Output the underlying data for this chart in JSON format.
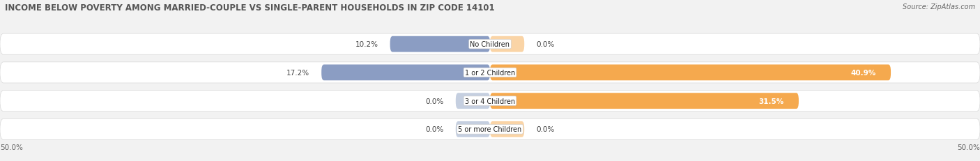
{
  "title": "INCOME BELOW POVERTY AMONG MARRIED-COUPLE VS SINGLE-PARENT HOUSEHOLDS IN ZIP CODE 14101",
  "source": "Source: ZipAtlas.com",
  "categories": [
    "No Children",
    "1 or 2 Children",
    "3 or 4 Children",
    "5 or more Children"
  ],
  "married_values": [
    10.2,
    17.2,
    0.0,
    0.0
  ],
  "single_values": [
    0.0,
    40.9,
    31.5,
    0.0
  ],
  "married_color": "#8b9dc3",
  "single_color": "#f5a94e",
  "married_color_light": "#c5cfe0",
  "single_color_light": "#fad4a6",
  "axis_max": 50.0,
  "bg_color": "#f2f2f2",
  "bar_bg_color": "#ffffff",
  "bar_bg_edge": "#d8d8d8",
  "title_fontsize": 8.5,
  "source_fontsize": 7,
  "label_fontsize": 7.5,
  "category_fontsize": 7,
  "legend_fontsize": 7.5,
  "bar_height": 0.62,
  "stub_size": 3.5,
  "title_color": "#555555",
  "axis_label_color": "#666666",
  "value_color": "#444444"
}
